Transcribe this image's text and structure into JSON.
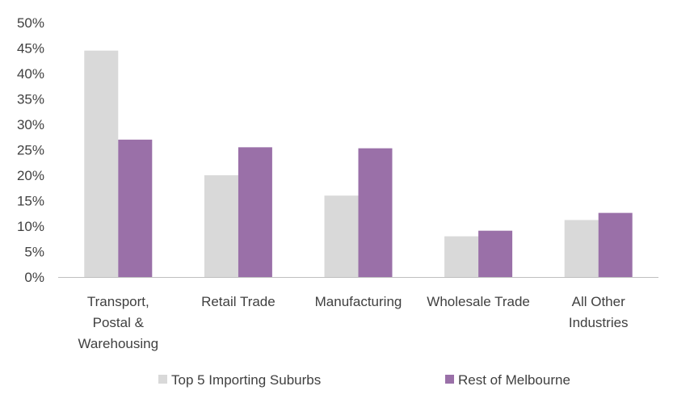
{
  "chart_data": {
    "type": "bar",
    "title": "",
    "xlabel": "",
    "ylabel": "",
    "ylim": [
      0,
      50
    ],
    "y_ticks": [
      "0%",
      "5%",
      "10%",
      "15%",
      "20%",
      "25%",
      "30%",
      "35%",
      "40%",
      "45%",
      "50%"
    ],
    "categories": [
      [
        "Transport,",
        "Postal &",
        "Warehousing"
      ],
      [
        "Retail Trade"
      ],
      [
        "Manufacturing"
      ],
      [
        "Wholesale Trade"
      ],
      [
        "All Other",
        "Industries"
      ]
    ],
    "series": [
      {
        "name": "Top 5 Importing Suburbs",
        "color": "#d9d9d9",
        "values": [
          44.5,
          20,
          16,
          8,
          11.2
        ]
      },
      {
        "name": "Rest of Melbourne",
        "color": "#9a70a8",
        "values": [
          27,
          25.5,
          25.3,
          9.1,
          12.6
        ]
      }
    ],
    "grid": false,
    "legend_position": "bottom"
  }
}
